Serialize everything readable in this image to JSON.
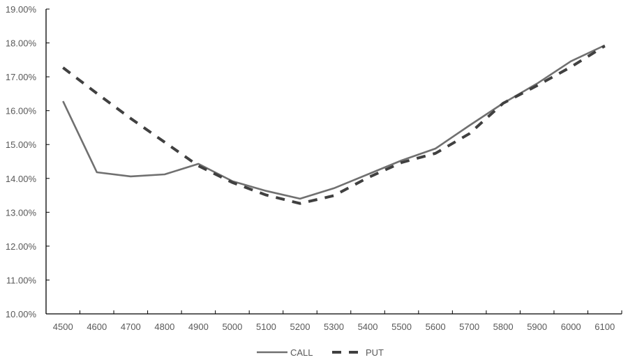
{
  "chart_data": {
    "type": "line",
    "title": "",
    "xlabel": "",
    "ylabel": "",
    "categories": [
      "4500",
      "4600",
      "4700",
      "4800",
      "4900",
      "5000",
      "5100",
      "5200",
      "5300",
      "5400",
      "5500",
      "5600",
      "5700",
      "5800",
      "5900",
      "6000",
      "6100"
    ],
    "series": [
      {
        "name": "CALL",
        "style": "solid",
        "color": "#707070",
        "values": [
          16.28,
          14.18,
          14.06,
          14.12,
          14.43,
          13.92,
          13.63,
          13.4,
          13.71,
          14.12,
          14.53,
          14.88,
          15.56,
          16.22,
          16.8,
          17.46,
          17.93
        ]
      },
      {
        "name": "PUT",
        "style": "dashed",
        "color": "#404040",
        "values": [
          17.27,
          16.51,
          15.77,
          15.07,
          14.37,
          13.88,
          13.51,
          13.26,
          13.49,
          14.02,
          14.47,
          14.74,
          15.32,
          16.22,
          16.74,
          17.29,
          17.91
        ]
      }
    ],
    "ylim": [
      10,
      19
    ],
    "yticks": [
      "10.00%",
      "11.00%",
      "12.00%",
      "13.00%",
      "14.00%",
      "15.00%",
      "16.00%",
      "17.00%",
      "18.00%",
      "19.00%"
    ],
    "grid": false,
    "legend_position": "bottom"
  }
}
